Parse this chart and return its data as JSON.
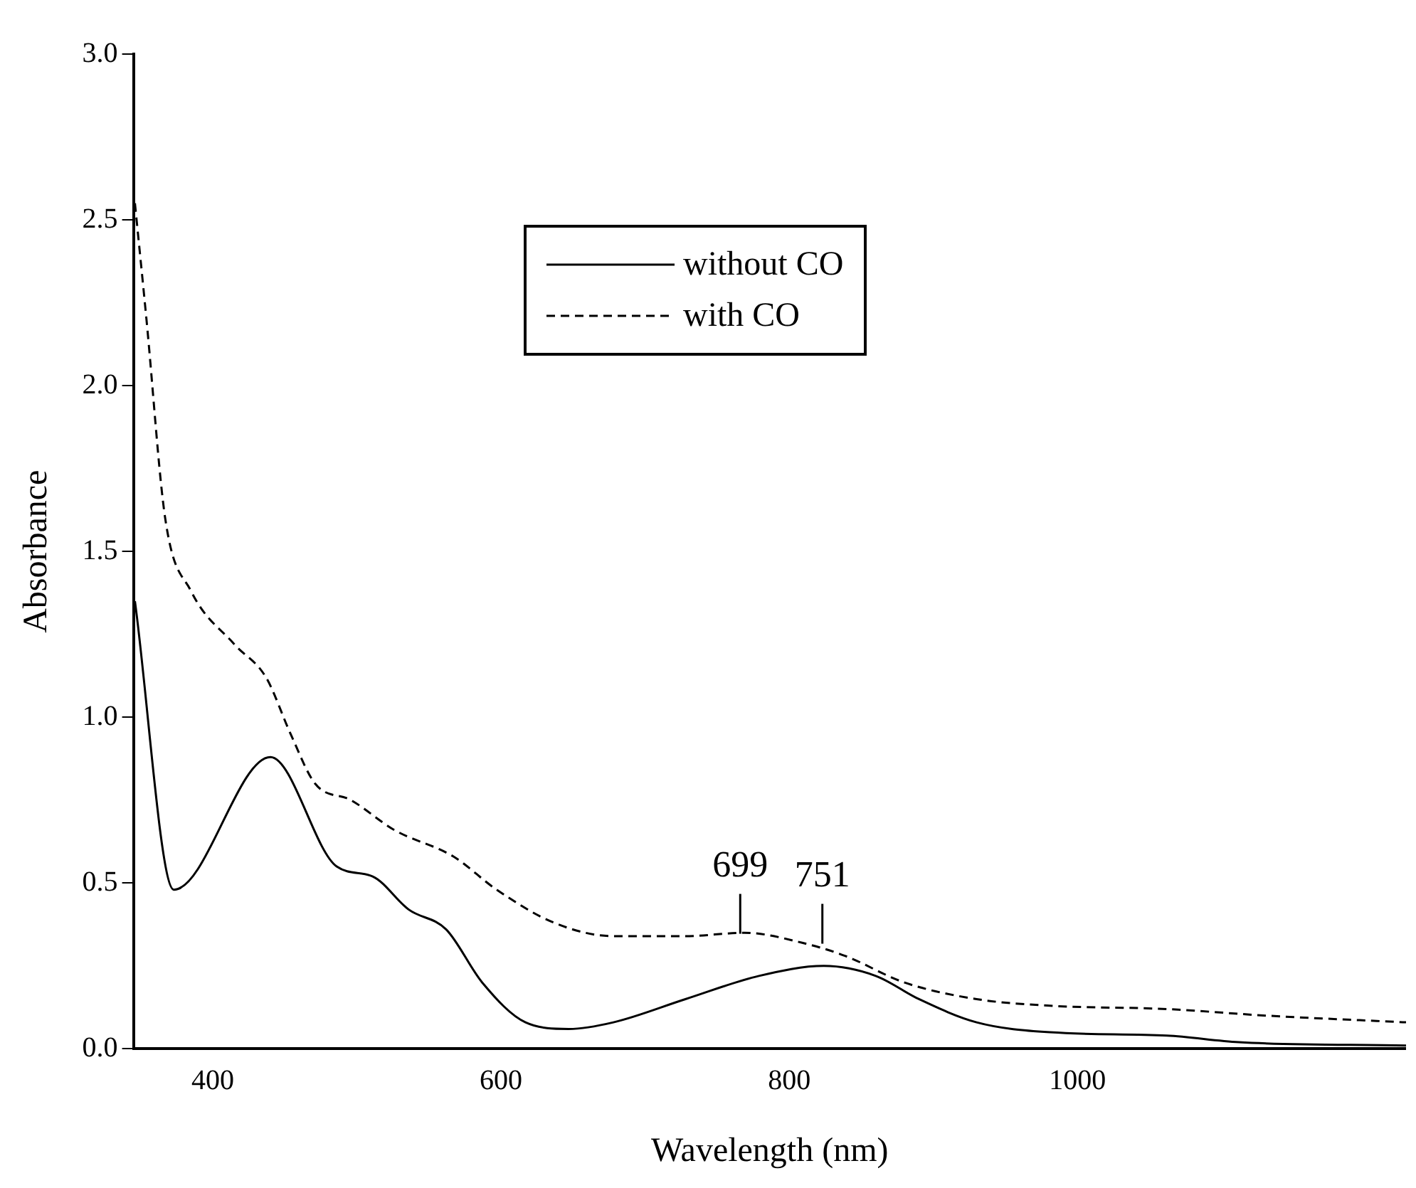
{
  "chart_data": {
    "type": "line",
    "xlabel": "Wavelength (nm)",
    "ylabel": "Absorbance",
    "xlim": [
      345,
      1228
    ],
    "xticks": [
      400,
      600,
      800,
      1000
    ],
    "ylim": [
      0,
      3
    ],
    "yticks": [
      {
        "value": 0,
        "label": "0.0"
      },
      {
        "value": 0.5,
        "label": "0.5"
      },
      {
        "value": 1,
        "label": "1.0"
      },
      {
        "value": 1.5,
        "label": "1.5"
      },
      {
        "value": 2,
        "label": "2.0"
      },
      {
        "value": 2.5,
        "label": "2.5"
      },
      {
        "value": 3,
        "label": "3.0"
      }
    ],
    "grid": false,
    "legend": "top",
    "marker": "none",
    "series": [
      {
        "name": "without CO",
        "color": "#000000",
        "line_style": "solid",
        "x": [
          346,
          373,
          440,
          486,
          511,
          536,
          562,
          587,
          617,
          647,
          678,
          728,
          779,
          824,
          860,
          890,
          930,
          981,
          1062,
          1112,
          1228
        ],
        "values": [
          1.35,
          0.48,
          0.88,
          0.55,
          0.52,
          0.42,
          0.36,
          0.2,
          0.08,
          0.06,
          0.08,
          0.15,
          0.22,
          0.25,
          0.22,
          0.15,
          0.08,
          0.05,
          0.04,
          0.02,
          0.01
        ]
      },
      {
        "name": "with CO",
        "color": "#000000",
        "line_style": "dashed",
        "x": [
          346,
          354,
          367,
          385,
          415,
          437,
          454,
          471,
          496,
          526,
          567,
          597,
          637,
          678,
          728,
          769,
          809,
          839,
          880,
          930,
          981,
          1062,
          1132,
          1228
        ],
        "values": [
          2.55,
          2.2,
          1.6,
          1.38,
          1.22,
          1.12,
          0.95,
          0.8,
          0.75,
          0.66,
          0.58,
          0.48,
          0.38,
          0.34,
          0.34,
          0.35,
          0.32,
          0.28,
          0.2,
          0.15,
          0.13,
          0.12,
          0.1,
          0.08
        ]
      }
    ],
    "annotations": [
      {
        "text": "699",
        "x": 766,
        "y": 0.33
      },
      {
        "text": "751",
        "x": 823,
        "y": 0.3
      }
    ]
  }
}
